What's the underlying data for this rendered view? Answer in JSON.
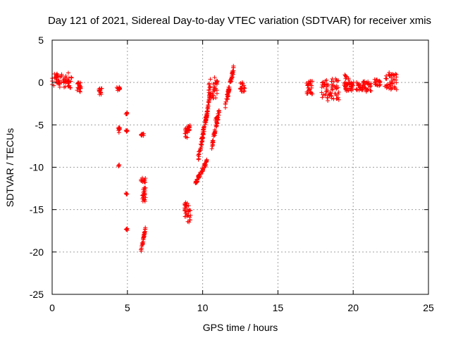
{
  "chart_data": {
    "type": "scatter",
    "title": "Day 121 of 2021, Sidereal Day-to-day VTEC variation (SDTVAR) for receiver xmis",
    "xlabel": "GPS time / hours",
    "ylabel": "SDTVAR / TECUs",
    "xlim": [
      0,
      25
    ],
    "ylim": [
      -25,
      5
    ],
    "xticks": [
      "0",
      "5",
      "10",
      "15",
      "20",
      "25"
    ],
    "yticks": [
      "5",
      "0",
      "-5",
      "-10",
      "-15",
      "-20",
      "-25"
    ],
    "grid": true,
    "marker": "+",
    "series_color": "#ff0000",
    "series": [
      {
        "name": "SDTVAR",
        "segments": [
          {
            "x0": 0.0,
            "x1": 1.3,
            "y0": -0.8,
            "y1": 1.2
          },
          {
            "x0": 1.6,
            "x1": 1.9,
            "y0": -1.2,
            "y1": 0.2
          },
          {
            "x0": 3.1,
            "x1": 3.3,
            "y0": -1.5,
            "y1": -0.5
          },
          {
            "x0": 4.3,
            "x1": 4.5,
            "y0": -1.0,
            "y1": -0.5
          },
          {
            "x0": 4.4,
            "x1": 4.5,
            "y0": -6.0,
            "y1": -5.2
          },
          {
            "x0": 4.4,
            "x1": 4.5,
            "y0": -9.9,
            "y1": -9.6
          },
          {
            "x0": 4.9,
            "x1": 5.0,
            "y0": -3.8,
            "y1": -3.4
          },
          {
            "x0": 4.9,
            "x1": 5.0,
            "y0": -5.8,
            "y1": -5.6
          },
          {
            "x0": 4.9,
            "x1": 5.0,
            "y0": -13.3,
            "y1": -13.0
          },
          {
            "x0": 4.9,
            "x1": 5.0,
            "y0": -17.6,
            "y1": -17.2
          },
          {
            "x0": 5.9,
            "x1": 6.1,
            "y0": -6.3,
            "y1": -6.0
          },
          {
            "x0": 5.9,
            "x1": 6.2,
            "y0": -11.8,
            "y1": -11.2
          },
          {
            "x0": 6.0,
            "x1": 6.2,
            "y0": -14.5,
            "y1": -12.0
          },
          {
            "x0": 5.9,
            "x1": 6.2,
            "y0": -20.2,
            "y1": -17.0
          },
          {
            "x0": 8.8,
            "x1": 9.0,
            "y0": -6.5,
            "y1": -5.2
          },
          {
            "x0": 9.0,
            "x1": 9.2,
            "y0": -5.8,
            "y1": -4.8
          },
          {
            "x0": 8.8,
            "x1": 9.2,
            "y0": -16.5,
            "y1": -13.8
          },
          {
            "x0": 9.5,
            "x1": 10.3,
            "y0": -12.2,
            "y1": -9.0
          },
          {
            "x0": 9.7,
            "x1": 10.3,
            "y0": -9.5,
            "y1": -3.0
          },
          {
            "x0": 10.2,
            "x1": 10.5,
            "y0": -5.0,
            "y1": -1.0
          },
          {
            "x0": 10.4,
            "x1": 11.0,
            "y0": -2.0,
            "y1": 0.8
          },
          {
            "x0": 10.6,
            "x1": 11.1,
            "y0": -8.0,
            "y1": -3.0
          },
          {
            "x0": 10.8,
            "x1": 11.0,
            "y0": -4.5,
            "y1": -4.0
          },
          {
            "x0": 11.5,
            "x1": 12.1,
            "y0": -3.2,
            "y1": 2.4
          },
          {
            "x0": 12.5,
            "x1": 12.8,
            "y0": -1.2,
            "y1": 0.1
          },
          {
            "x0": 16.9,
            "x1": 17.3,
            "y0": -1.6,
            "y1": 0.3
          },
          {
            "x0": 17.9,
            "x1": 19.1,
            "y0": -2.2,
            "y1": 0.6
          },
          {
            "x0": 19.4,
            "x1": 19.7,
            "y0": -1.2,
            "y1": 1.0
          },
          {
            "x0": 19.7,
            "x1": 21.2,
            "y0": -1.1,
            "y1": 0.2
          },
          {
            "x0": 21.4,
            "x1": 21.8,
            "y0": -0.4,
            "y1": 0.4
          },
          {
            "x0": 22.1,
            "x1": 22.9,
            "y0": -1.0,
            "y1": 1.3
          }
        ]
      }
    ]
  }
}
